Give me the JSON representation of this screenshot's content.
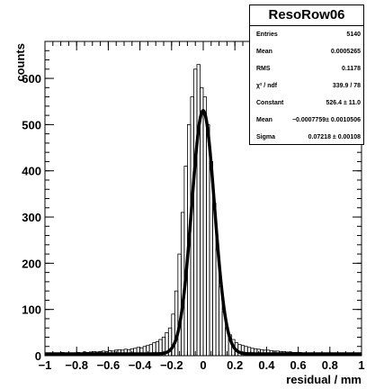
{
  "chart_data": {
    "type": "bar",
    "title": "",
    "xlabel": "residual / mm",
    "ylabel": "counts",
    "xlim": [
      -1,
      1
    ],
    "ylim": [
      0,
      680
    ],
    "xticks": [
      -1,
      -0.8,
      -0.6,
      -0.4,
      -0.2,
      0,
      0.2,
      0.4,
      0.6,
      0.8,
      1
    ],
    "xtick_labels": [
      "−1",
      "−0.8",
      "−0.6",
      "−0.4",
      "−0.2",
      "0",
      "0.2",
      "0.4",
      "0.6",
      "0.8",
      "1"
    ],
    "yticks": [
      0,
      100,
      200,
      300,
      400,
      500,
      600
    ],
    "ytick_labels": [
      "0",
      "100",
      "200",
      "300",
      "400",
      "500",
      "600"
    ],
    "bin_width": 0.02,
    "histogram": {
      "x": [
        -0.99,
        -0.97,
        -0.95,
        -0.93,
        -0.91,
        -0.89,
        -0.87,
        -0.85,
        -0.83,
        -0.81,
        -0.79,
        -0.77,
        -0.75,
        -0.73,
        -0.71,
        -0.69,
        -0.67,
        -0.65,
        -0.63,
        -0.61,
        -0.59,
        -0.57,
        -0.55,
        -0.53,
        -0.51,
        -0.49,
        -0.47,
        -0.45,
        -0.43,
        -0.41,
        -0.39,
        -0.37,
        -0.35,
        -0.33,
        -0.31,
        -0.29,
        -0.27,
        -0.25,
        -0.23,
        -0.21,
        -0.19,
        -0.17,
        -0.15,
        -0.13,
        -0.11,
        -0.09,
        -0.07,
        -0.05,
        -0.03,
        -0.01,
        0.01,
        0.03,
        0.05,
        0.07,
        0.09,
        0.11,
        0.13,
        0.15,
        0.17,
        0.19,
        0.21,
        0.23,
        0.25,
        0.27,
        0.29,
        0.31,
        0.33,
        0.35,
        0.37,
        0.39,
        0.41,
        0.43,
        0.45,
        0.47,
        0.49,
        0.51,
        0.53,
        0.55,
        0.57,
        0.59,
        0.61,
        0.63,
        0.65,
        0.67,
        0.69,
        0.71,
        0.73,
        0.75,
        0.77,
        0.79,
        0.81,
        0.83,
        0.85,
        0.87,
        0.89,
        0.91,
        0.93,
        0.95,
        0.97,
        0.99
      ],
      "counts": [
        5,
        4,
        6,
        5,
        4,
        7,
        5,
        6,
        5,
        6,
        7,
        6,
        8,
        7,
        8,
        9,
        8,
        9,
        10,
        9,
        11,
        10,
        12,
        13,
        12,
        14,
        13,
        15,
        16,
        18,
        17,
        20,
        22,
        24,
        28,
        30,
        35,
        40,
        50,
        60,
        90,
        140,
        220,
        310,
        410,
        500,
        560,
        620,
        630,
        580,
        560,
        500,
        420,
        330,
        230,
        150,
        95,
        60,
        45,
        35,
        28,
        24,
        22,
        20,
        18,
        16,
        15,
        14,
        13,
        12,
        12,
        11,
        10,
        10,
        9,
        9,
        8,
        8,
        7,
        7,
        7,
        6,
        6,
        6,
        5,
        5,
        5,
        5,
        4,
        5,
        4,
        4,
        4,
        5,
        4,
        4,
        3,
        4,
        3,
        4
      ]
    },
    "series": [
      {
        "type": "gaussian-fit",
        "constant": 526.4,
        "mean": -0.0007759,
        "sigma": 0.07218,
        "background": 4
      }
    ]
  },
  "stats": {
    "title": "ResoRow06",
    "rows": [
      {
        "label": "Entries",
        "value": "5140"
      },
      {
        "label": "Mean",
        "value": "0.0005265"
      },
      {
        "label": "RMS",
        "value": "0.1178"
      },
      {
        "label": "χ² / ndf",
        "value": "339.9 / 78"
      },
      {
        "label": "Constant",
        "value": "526.4 ± 11.0"
      },
      {
        "label": "Mean",
        "value": "−0.0007759± 0.0010506"
      },
      {
        "label": "Sigma",
        "value": "0.07218 ± 0.00108"
      }
    ]
  }
}
